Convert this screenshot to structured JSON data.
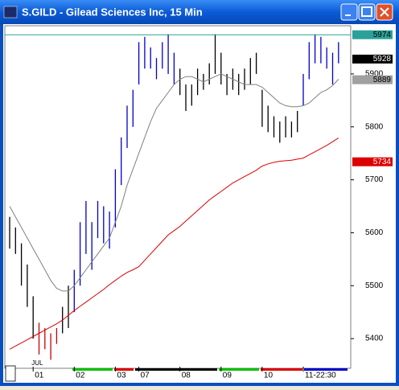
{
  "window_title": "S.GILD - Gilead Sciences Inc, 15 Min",
  "chart_data": {
    "type": "ohlc",
    "month_label": "JUL",
    "categories": [
      null,
      null,
      null,
      null,
      "01",
      null,
      null,
      null,
      null,
      null,
      null,
      "02",
      null,
      null,
      null,
      null,
      null,
      null,
      "03",
      null,
      null,
      null,
      "07",
      null,
      null,
      null,
      null,
      null,
      null,
      "08",
      null,
      null,
      null,
      null,
      null,
      null,
      "09",
      null,
      null,
      null,
      null,
      null,
      null,
      "10",
      null,
      null,
      null,
      null,
      null,
      null,
      "11-22:30",
      null,
      null,
      null,
      null,
      null,
      null
    ],
    "high": [
      5630,
      5610,
      5580,
      5540,
      5480,
      5430,
      5420,
      5410,
      5420,
      5460,
      5500,
      5530,
      5620,
      5660,
      5620,
      5660,
      5650,
      5640,
      5720,
      5780,
      5840,
      5870,
      5960,
      5970,
      5950,
      5930,
      5960,
      5975,
      5940,
      5910,
      5880,
      5880,
      5910,
      5900,
      5920,
      5975,
      5940,
      5900,
      5910,
      5900,
      5910,
      5930,
      5940,
      5870,
      5840,
      5820,
      5810,
      5820,
      5810,
      5830,
      5900,
      5960,
      5975,
      5970,
      5950,
      5940,
      5960
    ],
    "low": [
      5570,
      5560,
      5500,
      5460,
      5400,
      5370,
      5380,
      5360,
      5390,
      5410,
      5420,
      5450,
      5500,
      5560,
      5530,
      5590,
      5580,
      5570,
      5610,
      5690,
      5760,
      5800,
      5880,
      5910,
      5910,
      5890,
      5910,
      5900,
      5880,
      5860,
      5830,
      5840,
      5860,
      5870,
      5880,
      5900,
      5880,
      5860,
      5870,
      5860,
      5870,
      5880,
      5900,
      5800,
      5790,
      5780,
      5770,
      5780,
      5780,
      5790,
      5840,
      5890,
      5920,
      5920,
      5910,
      5880,
      5920
    ],
    "bar_colors": [
      "#000000",
      "#000000",
      "#000000",
      "#000000",
      "#000000",
      "#cc0000",
      "#cc0000",
      "#cc0000",
      "#cc0000",
      "#000000",
      "#000000",
      "#0000cc",
      "#0000cc",
      "#0000cc",
      "#0000cc",
      "#0000cc",
      "#0000cc",
      "#0000cc",
      "#0000cc",
      "#0000cc",
      "#0000cc",
      "#0000cc",
      "#0000cc",
      "#0000cc",
      "#0000cc",
      "#0000cc",
      "#0000cc",
      "#0000cc",
      "#0000cc",
      "#000000",
      "#000000",
      "#000000",
      "#000000",
      "#000000",
      "#000000",
      "#000000",
      "#000000",
      "#000000",
      "#000000",
      "#000000",
      "#000000",
      "#000000",
      "#000000",
      "#000000",
      "#000000",
      "#000000",
      "#000000",
      "#000000",
      "#000000",
      "#000000",
      "#0000cc",
      "#0000cc",
      "#0000cc",
      "#0000cc",
      "#0000cc",
      "#0000cc",
      "#0000cc"
    ],
    "series": [
      {
        "color": "#808080",
        "values": [
          5650,
          5630,
          5610,
          5590,
          5570,
          5550,
          5530,
          5510,
          5495,
          5490,
          5490,
          5500,
          5515,
          5530,
          5545,
          5560,
          5575,
          5590,
          5620,
          5650,
          5690,
          5720,
          5750,
          5780,
          5810,
          5835,
          5850,
          5865,
          5880,
          5890,
          5895,
          5895,
          5890,
          5885,
          5890,
          5895,
          5900,
          5895,
          5890,
          5885,
          5880,
          5880,
          5880,
          5875,
          5865,
          5855,
          5845,
          5840,
          5838,
          5838,
          5840,
          5845,
          5855,
          5865,
          5870,
          5878,
          5890
        ]
      },
      {
        "color": "#dd0000",
        "values": [
          5380,
          5386,
          5392,
          5398,
          5404,
          5410,
          5416,
          5422,
          5428,
          5435,
          5444,
          5453,
          5461,
          5469,
          5477,
          5485,
          5493,
          5502,
          5510,
          5518,
          5525,
          5530,
          5536,
          5548,
          5560,
          5572,
          5584,
          5596,
          5604,
          5612,
          5622,
          5632,
          5642,
          5652,
          5662,
          5670,
          5678,
          5686,
          5694,
          5700,
          5706,
          5712,
          5718,
          5726,
          5730,
          5733,
          5735,
          5736,
          5737,
          5739,
          5741,
          5747,
          5753,
          5759,
          5765,
          5772,
          5779
        ]
      }
    ],
    "price_labels": [
      {
        "value": 5974,
        "color": "#2aa198",
        "text_color": "#000000"
      },
      {
        "value": 5928,
        "color": "#000000",
        "text_color": "#ffffff"
      },
      {
        "value": 5889,
        "color": "#a0a0a0",
        "text_color": "#000000"
      },
      {
        "value": 5734,
        "color": "#dd0000",
        "text_color": "#ffffff"
      }
    ],
    "ylim": [
      5347,
      5991
    ],
    "yticks": [
      5400,
      5500,
      5600,
      5700,
      5800,
      5900
    ]
  }
}
